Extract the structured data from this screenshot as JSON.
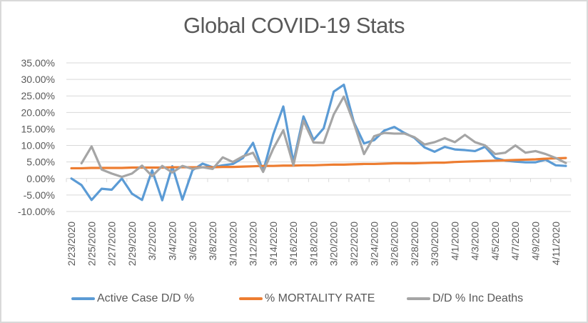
{
  "chart_data": {
    "type": "line",
    "title": "Global COVID-19 Stats",
    "xlabel": "",
    "ylabel": "",
    "ylim": [
      -0.1,
      0.35
    ],
    "y_ticks": [
      0.35,
      0.3,
      0.25,
      0.2,
      0.15,
      0.1,
      0.05,
      0.0,
      -0.05,
      -0.1
    ],
    "y_tick_labels": [
      "35.00%",
      "30.00%",
      "25.00%",
      "20.00%",
      "15.00%",
      "10.00%",
      "5.00%",
      "0.00%",
      "-5.00%",
      "-10.00%"
    ],
    "grid": true,
    "legend_position": "bottom",
    "categories": [
      "2/23/2020",
      "2/24/2020",
      "2/25/2020",
      "2/26/2020",
      "2/27/2020",
      "2/28/2020",
      "2/29/2020",
      "3/1/2020",
      "3/2/2020",
      "3/3/2020",
      "3/4/2020",
      "3/5/2020",
      "3/6/2020",
      "3/7/2020",
      "3/8/2020",
      "3/9/2020",
      "3/10/2020",
      "3/11/2020",
      "3/12/2020",
      "3/13/2020",
      "3/14/2020",
      "3/15/2020",
      "3/16/2020",
      "3/17/2020",
      "3/18/2020",
      "3/19/2020",
      "3/20/2020",
      "3/21/2020",
      "3/22/2020",
      "3/23/2020",
      "3/24/2020",
      "3/25/2020",
      "3/26/2020",
      "3/27/2020",
      "3/28/2020",
      "3/29/2020",
      "3/30/2020",
      "3/31/2020",
      "4/1/2020",
      "4/2/2020",
      "4/3/2020",
      "4/4/2020",
      "4/5/2020",
      "4/6/2020",
      "4/7/2020",
      "4/8/2020",
      "4/9/2020",
      "4/10/2020",
      "4/11/2020",
      "4/12/2020"
    ],
    "x_tick_labels": [
      "2/23/2020",
      "2/25/2020",
      "2/27/2020",
      "2/29/2020",
      "3/2/2020",
      "3/4/2020",
      "3/6/2020",
      "3/8/2020",
      "3/10/2020",
      "3/12/2020",
      "3/14/2020",
      "3/16/2020",
      "3/18/2020",
      "3/20/2020",
      "3/22/2020",
      "3/24/2020",
      "3/26/2020",
      "3/28/2020",
      "3/30/2020",
      "4/1/2020",
      "4/3/2020",
      "4/5/2020",
      "4/7/2020",
      "4/9/2020",
      "4/11/2020"
    ],
    "series": [
      {
        "name": "Active Case D/D %",
        "color": "#5b9bd5",
        "values": [
          0.0,
          -0.02,
          -0.065,
          -0.031,
          -0.034,
          0.0,
          -0.046,
          -0.065,
          0.025,
          -0.066,
          0.037,
          -0.064,
          0.025,
          0.045,
          0.034,
          0.04,
          0.044,
          0.062,
          0.108,
          0.022,
          0.133,
          0.218,
          0.05,
          0.188,
          0.117,
          0.152,
          0.263,
          0.284,
          0.17,
          0.106,
          0.116,
          0.145,
          0.156,
          0.138,
          0.123,
          0.094,
          0.081,
          0.096,
          0.088,
          0.086,
          0.083,
          0.096,
          0.062,
          0.054,
          0.051,
          0.049,
          0.049,
          0.057,
          0.04,
          0.038
        ]
      },
      {
        "name": "% MORTALITY RATE",
        "color": "#ed7d31",
        "values": [
          0.031,
          0.031,
          0.032,
          0.032,
          0.032,
          0.032,
          0.033,
          0.033,
          0.033,
          0.033,
          0.034,
          0.034,
          0.034,
          0.034,
          0.034,
          0.035,
          0.035,
          0.036,
          0.037,
          0.038,
          0.038,
          0.039,
          0.039,
          0.04,
          0.04,
          0.041,
          0.042,
          0.042,
          0.043,
          0.044,
          0.044,
          0.045,
          0.046,
          0.046,
          0.046,
          0.047,
          0.048,
          0.048,
          0.05,
          0.051,
          0.052,
          0.053,
          0.054,
          0.055,
          0.056,
          0.057,
          0.058,
          0.06,
          0.061,
          0.062
        ]
      },
      {
        "name": "D/D % Inc Deaths",
        "color": "#a5a5a5",
        "values": [
          null,
          0.046,
          0.097,
          0.027,
          0.015,
          0.005,
          0.015,
          0.039,
          0.007,
          0.038,
          0.018,
          0.038,
          0.029,
          0.034,
          0.029,
          0.064,
          0.05,
          0.067,
          0.078,
          0.02,
          0.09,
          0.146,
          0.04,
          0.175,
          0.109,
          0.108,
          0.194,
          0.248,
          0.167,
          0.074,
          0.128,
          0.138,
          0.136,
          0.136,
          0.125,
          0.103,
          0.11,
          0.122,
          0.11,
          0.132,
          0.11,
          0.1,
          0.074,
          0.078,
          0.1,
          0.078,
          0.083,
          0.074,
          0.062,
          0.047
        ]
      }
    ]
  }
}
